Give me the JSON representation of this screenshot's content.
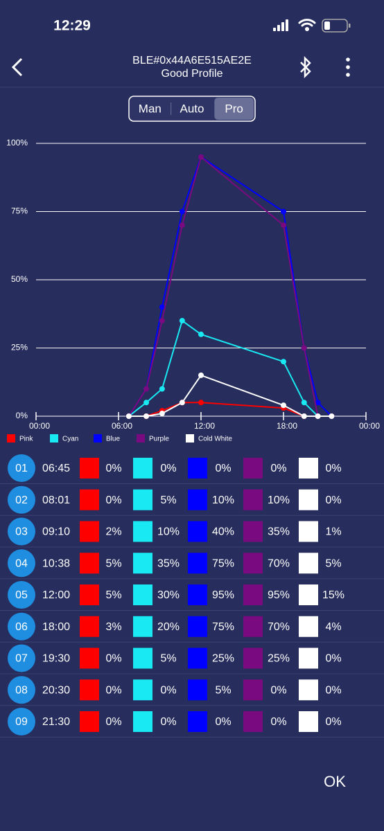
{
  "status_bar": {
    "time": "12:29"
  },
  "header": {
    "device": "BLE#0x44A6E515AE2E",
    "profile": "Good Profile"
  },
  "tabs": {
    "items": [
      "Man",
      "Auto",
      "Pro"
    ],
    "selected": 2
  },
  "chart_data": {
    "type": "line",
    "x": [
      6.75,
      8.02,
      9.17,
      10.63,
      12,
      18,
      19.5,
      20.5,
      21.5
    ],
    "xlim": [
      0,
      24
    ],
    "xticks": [
      {
        "value": 0,
        "label": "00:00"
      },
      {
        "value": 6,
        "label": "06:00"
      },
      {
        "value": 12,
        "label": "12:00"
      },
      {
        "value": 18,
        "label": "18:00"
      },
      {
        "value": 24,
        "label": "00:00"
      }
    ],
    "ylim": [
      0,
      100
    ],
    "yticks": [
      {
        "value": 0,
        "label": "0%"
      },
      {
        "value": 25,
        "label": "25%"
      },
      {
        "value": 50,
        "label": "50%"
      },
      {
        "value": 75,
        "label": "75%"
      },
      {
        "value": 100,
        "label": "100%"
      }
    ],
    "grid": true,
    "series": [
      {
        "name": "Pink",
        "color": "#ff0000",
        "values": [
          0,
          0,
          2,
          5,
          5,
          3,
          0,
          0,
          0
        ]
      },
      {
        "name": "Cyan",
        "color": "#19e9f2",
        "values": [
          0,
          5,
          10,
          35,
          30,
          20,
          5,
          0,
          0
        ]
      },
      {
        "name": "Blue",
        "color": "#0000ff",
        "values": [
          0,
          10,
          40,
          75,
          95,
          75,
          25,
          5,
          0
        ]
      },
      {
        "name": "Purple",
        "color": "#7a0a80",
        "values": [
          0,
          10,
          35,
          70,
          95,
          70,
          25,
          0,
          0
        ]
      },
      {
        "name": "Cold White",
        "color": "#ffffff",
        "values": [
          0,
          0,
          1,
          5,
          15,
          4,
          0,
          0,
          0
        ]
      }
    ]
  },
  "table": {
    "rows": [
      {
        "id": "01",
        "time": "06:45",
        "values": [
          "0%",
          "0%",
          "0%",
          "0%",
          "0%"
        ]
      },
      {
        "id": "02",
        "time": "08:01",
        "values": [
          "0%",
          "5%",
          "10%",
          "10%",
          "0%"
        ]
      },
      {
        "id": "03",
        "time": "09:10",
        "values": [
          "2%",
          "10%",
          "40%",
          "35%",
          "1%"
        ]
      },
      {
        "id": "04",
        "time": "10:38",
        "values": [
          "5%",
          "35%",
          "75%",
          "70%",
          "5%"
        ]
      },
      {
        "id": "05",
        "time": "12:00",
        "values": [
          "5%",
          "30%",
          "95%",
          "95%",
          "15%"
        ]
      },
      {
        "id": "06",
        "time": "18:00",
        "values": [
          "3%",
          "20%",
          "75%",
          "70%",
          "4%"
        ]
      },
      {
        "id": "07",
        "time": "19:30",
        "values": [
          "0%",
          "5%",
          "25%",
          "25%",
          "0%"
        ]
      },
      {
        "id": "08",
        "time": "20:30",
        "values": [
          "0%",
          "0%",
          "5%",
          "0%",
          "0%"
        ]
      },
      {
        "id": "09",
        "time": "21:30",
        "values": [
          "0%",
          "0%",
          "0%",
          "0%",
          "0%"
        ]
      }
    ]
  },
  "ok_button": "OK"
}
